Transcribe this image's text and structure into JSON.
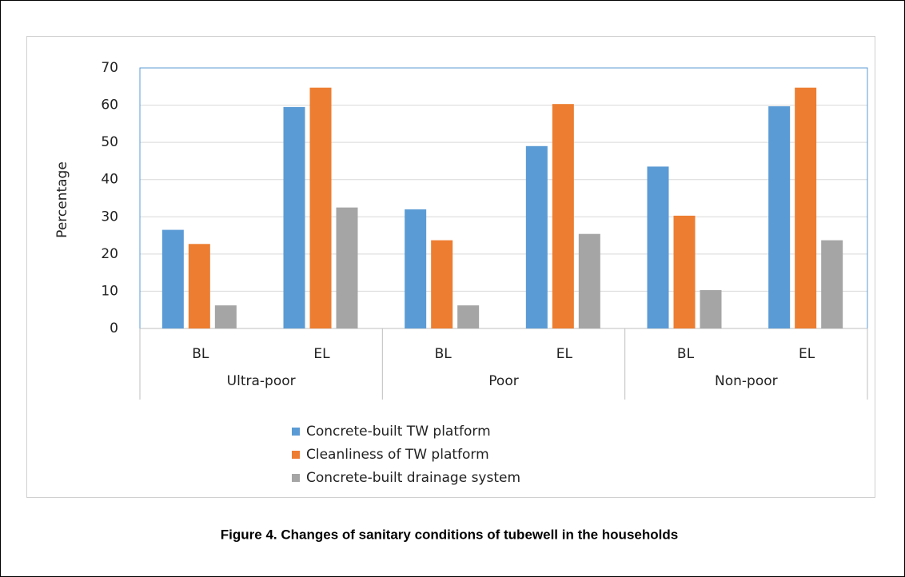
{
  "chart_data": {
    "type": "bar",
    "caption": "Figure 4. Changes of sanitary conditions of tubewell in the households",
    "y_label": "Percentage",
    "categories": [
      "BL",
      "EL",
      "BL",
      "EL",
      "BL",
      "EL"
    ],
    "groups": [
      "Ultra-poor",
      "Poor",
      "Non-poor"
    ],
    "series": [
      {
        "name": "Concrete-built TW platform",
        "color": "#5b9bd5",
        "values": [
          26.5,
          59.5,
          32,
          49,
          43.5,
          59.7
        ]
      },
      {
        "name": "Cleanliness of TW platform",
        "color": "#ed7d31",
        "values": [
          22.7,
          64.7,
          23.7,
          60.3,
          30.3,
          64.7
        ]
      },
      {
        "name": "Concrete-built drainage system",
        "color": "#a5a5a5",
        "values": [
          6.2,
          32.5,
          6.2,
          25.4,
          10.3,
          23.7
        ]
      }
    ],
    "ylim": [
      0,
      70
    ],
    "yticks": [
      0,
      10,
      20,
      30,
      40,
      50,
      60,
      70
    ],
    "grid": true
  }
}
